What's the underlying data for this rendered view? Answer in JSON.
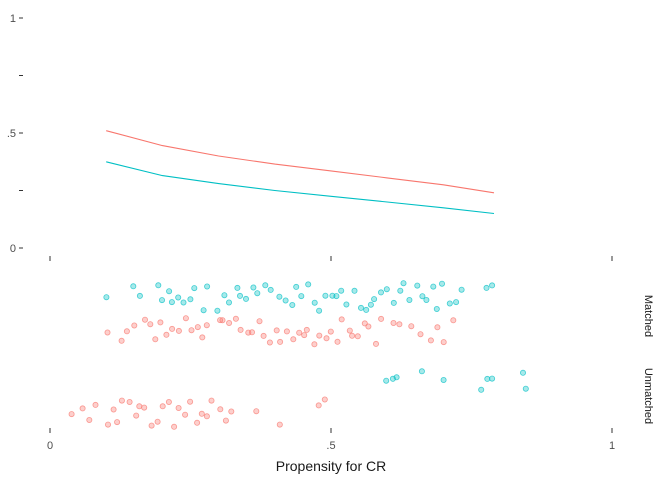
{
  "chart_data": {
    "type": "scatter",
    "top_panel": {
      "type": "line",
      "ylim": [
        0,
        1
      ],
      "yticks": [
        {
          "value": 0,
          "label": "0"
        },
        {
          "value": 0.25,
          "label": ""
        },
        {
          "value": 0.5,
          "label": ".5"
        },
        {
          "value": 0.75,
          "label": ""
        },
        {
          "value": 1,
          "label": "1"
        }
      ],
      "series": [
        {
          "color": "#F8766D",
          "x": [
            0.1,
            0.2,
            0.3,
            0.4,
            0.5,
            0.6,
            0.7,
            0.79
          ],
          "y": [
            0.51,
            0.445,
            0.4,
            0.365,
            0.335,
            0.305,
            0.275,
            0.24
          ]
        },
        {
          "color": "#00BFC4",
          "x": [
            0.1,
            0.2,
            0.3,
            0.4,
            0.5,
            0.6,
            0.7,
            0.79
          ],
          "y": [
            0.375,
            0.315,
            0.28,
            0.25,
            0.225,
            0.2,
            0.175,
            0.15
          ]
        }
      ]
    },
    "bottom_panel": {
      "type": "scatter",
      "xlim": [
        0,
        1
      ],
      "xticks": [
        {
          "value": 0,
          "label": "0"
        },
        {
          "value": 0.5,
          "label": ".5"
        },
        {
          "value": 1,
          "label": "1"
        }
      ],
      "xlabel": "Propensity for CR",
      "groups": [
        {
          "label": "Matched",
          "series": [
            {
              "color": "#00BFC4",
              "x": [
                0.1,
                0.15,
                0.16,
                0.19,
                0.2,
                0.21,
                0.22,
                0.23,
                0.24,
                0.25,
                0.26,
                0.27,
                0.28,
                0.3,
                0.31,
                0.32,
                0.33,
                0.34,
                0.35,
                0.36,
                0.37,
                0.38,
                0.39,
                0.41,
                0.42,
                0.43,
                0.44,
                0.45,
                0.46,
                0.47,
                0.48,
                0.49,
                0.5,
                0.51,
                0.52,
                0.53,
                0.54,
                0.55,
                0.56,
                0.57,
                0.58,
                0.59,
                0.6,
                0.61,
                0.62,
                0.63,
                0.64,
                0.65,
                0.66,
                0.67,
                0.68,
                0.69,
                0.7,
                0.71,
                0.72,
                0.73,
                0.78,
                0.79
              ]
            },
            {
              "color": "#F8766D",
              "x": [
                0.1,
                0.13,
                0.14,
                0.15,
                0.17,
                0.18,
                0.19,
                0.2,
                0.21,
                0.22,
                0.23,
                0.24,
                0.25,
                0.26,
                0.27,
                0.28,
                0.3,
                0.31,
                0.32,
                0.33,
                0.34,
                0.35,
                0.36,
                0.37,
                0.38,
                0.39,
                0.4,
                0.41,
                0.42,
                0.43,
                0.44,
                0.45,
                0.46,
                0.47,
                0.48,
                0.49,
                0.5,
                0.51,
                0.52,
                0.53,
                0.54,
                0.55,
                0.56,
                0.57,
                0.58,
                0.59,
                0.61,
                0.62,
                0.64,
                0.66,
                0.68,
                0.69,
                0.7,
                0.72
              ]
            }
          ]
        },
        {
          "label": "Unmatched",
          "series": [
            {
              "color": "#00BFC4",
              "x": [
                0.6,
                0.61,
                0.62,
                0.66,
                0.7,
                0.77,
                0.78,
                0.79,
                0.84,
                0.85
              ]
            },
            {
              "color": "#F8766D",
              "x": [
                0.04,
                0.06,
                0.07,
                0.08,
                0.1,
                0.11,
                0.12,
                0.13,
                0.14,
                0.15,
                0.16,
                0.17,
                0.18,
                0.19,
                0.2,
                0.21,
                0.22,
                0.23,
                0.24,
                0.25,
                0.26,
                0.27,
                0.28,
                0.29,
                0.3,
                0.31,
                0.32,
                0.37,
                0.41,
                0.48,
                0.49
              ]
            }
          ]
        }
      ]
    }
  }
}
